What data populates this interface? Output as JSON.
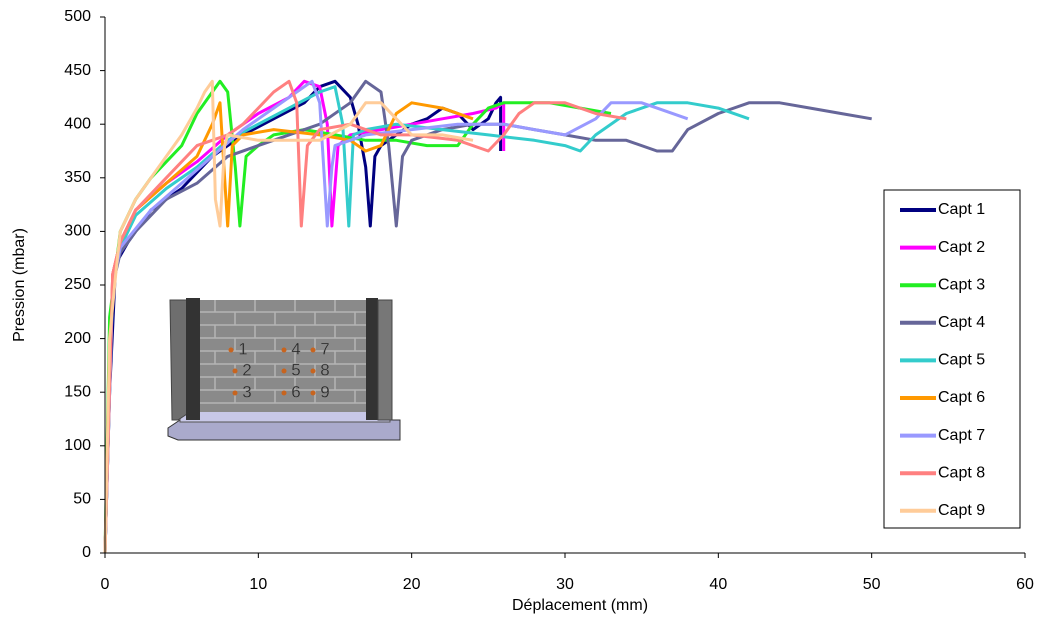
{
  "chart_data": {
    "type": "line",
    "x_label": "Déplacement (mm)",
    "y_label": "Pression (mbar)",
    "xlim": [
      0,
      60
    ],
    "xticks": [
      0,
      10,
      20,
      30,
      40,
      50,
      60
    ],
    "ylim": [
      0,
      500
    ],
    "yticks": [
      0,
      50,
      100,
      150,
      200,
      250,
      300,
      350,
      400,
      450,
      500
    ],
    "grid": false,
    "legend": "right",
    "inset_labels": [
      "1",
      "2",
      "3",
      "4",
      "5",
      "6",
      "7",
      "8",
      "9"
    ],
    "series": [
      {
        "name": "Capt 1",
        "color": "#000080",
        "x": [
          0,
          0.3,
          0.7,
          1.5,
          3,
          5,
          7,
          9,
          11,
          13,
          14,
          15,
          16,
          16.5,
          17,
          17.3,
          17.6,
          18,
          19,
          20,
          21,
          22,
          23,
          24,
          25,
          25.5,
          25.8,
          25.8
        ],
        "values": [
          0,
          150,
          270,
          290,
          320,
          340,
          370,
          390,
          405,
          420,
          435,
          440,
          425,
          400,
          360,
          305,
          370,
          380,
          390,
          400,
          405,
          415,
          410,
          395,
          405,
          420,
          425,
          375
        ]
      },
      {
        "name": "Capt 2",
        "color": "#ff00ff",
        "x": [
          0,
          0.5,
          1,
          2,
          4,
          6,
          8,
          10,
          12,
          13,
          14,
          14.5,
          14.8,
          15.2,
          16,
          18,
          20,
          22,
          24,
          25.5,
          26,
          26
        ],
        "values": [
          0,
          260,
          290,
          320,
          345,
          365,
          390,
          410,
          425,
          440,
          435,
          400,
          305,
          380,
          390,
          395,
          400,
          405,
          410,
          415,
          420,
          375
        ]
      },
      {
        "name": "Capt 3",
        "color": "#22ee22",
        "x": [
          0,
          0.3,
          1,
          2,
          3,
          5,
          6,
          7,
          7.5,
          8,
          8.5,
          8.8,
          9.2,
          10,
          11,
          13,
          15,
          17,
          19,
          21,
          23,
          24,
          25,
          26,
          27,
          29,
          31,
          33
        ],
        "values": [
          0,
          220,
          300,
          330,
          350,
          380,
          410,
          430,
          440,
          430,
          360,
          305,
          370,
          380,
          390,
          395,
          390,
          385,
          385,
          380,
          380,
          400,
          415,
          420,
          420,
          420,
          415,
          410
        ]
      },
      {
        "name": "Capt 4",
        "color": "#666699",
        "x": [
          0,
          0.5,
          1,
          2,
          4,
          6,
          8,
          10,
          12,
          14,
          16,
          17,
          18,
          18.5,
          19,
          19.4,
          20,
          22,
          24,
          26,
          28,
          30,
          32,
          34,
          36,
          37,
          38,
          40,
          42,
          44,
          46,
          48,
          50
        ],
        "values": [
          0,
          250,
          280,
          300,
          330,
          345,
          370,
          380,
          390,
          400,
          420,
          440,
          430,
          380,
          305,
          370,
          385,
          395,
          400,
          400,
          395,
          390,
          385,
          385,
          375,
          375,
          395,
          410,
          420,
          420,
          415,
          410,
          405
        ]
      },
      {
        "name": "Capt 5",
        "color": "#33cccc",
        "x": [
          0,
          0.5,
          1,
          2,
          4,
          6,
          8,
          10,
          12,
          14,
          15,
          15.5,
          15.9,
          16.2,
          17,
          19,
          22,
          25,
          28,
          30,
          31,
          32,
          34,
          36,
          38,
          40,
          42
        ],
        "values": [
          0,
          255,
          285,
          315,
          340,
          360,
          385,
          400,
          415,
          430,
          435,
          400,
          305,
          390,
          395,
          400,
          395,
          390,
          385,
          380,
          375,
          390,
          410,
          420,
          420,
          415,
          405
        ]
      },
      {
        "name": "Capt 6",
        "color": "#ff9900",
        "x": [
          0,
          0.5,
          1,
          2,
          4,
          6,
          7,
          7.5,
          7.8,
          8,
          8.3,
          9,
          11,
          14,
          16,
          17,
          18,
          19,
          20,
          22,
          24
        ],
        "values": [
          0,
          260,
          290,
          320,
          345,
          370,
          400,
          420,
          350,
          305,
          380,
          390,
          395,
          390,
          385,
          375,
          380,
          410,
          420,
          415,
          405
        ]
      },
      {
        "name": "Capt 7",
        "color": "#9999ff",
        "x": [
          0,
          0.5,
          1,
          3,
          5,
          7,
          9,
          11,
          12.5,
          13.5,
          14,
          14.5,
          14.8,
          15,
          17,
          20,
          23,
          26,
          28,
          30,
          32,
          33,
          35,
          36,
          38
        ],
        "values": [
          0,
          250,
          285,
          320,
          345,
          370,
          395,
          415,
          430,
          440,
          420,
          305,
          360,
          380,
          390,
          395,
          400,
          400,
          395,
          390,
          405,
          420,
          420,
          415,
          405
        ]
      },
      {
        "name": "Capt 8",
        "color": "#ff8080",
        "x": [
          0,
          0.5,
          1,
          2,
          4,
          6,
          8,
          9,
          10,
          11,
          12,
          12.5,
          12.8,
          13.2,
          14,
          16,
          18,
          20,
          23,
          25,
          26,
          27,
          28,
          30,
          32,
          34
        ],
        "values": [
          0,
          260,
          290,
          320,
          350,
          380,
          390,
          400,
          415,
          430,
          440,
          420,
          305,
          380,
          395,
          400,
          390,
          390,
          385,
          375,
          390,
          410,
          420,
          420,
          410,
          405
        ]
      },
      {
        "name": "Capt 9",
        "color": "#ffcc99",
        "x": [
          0,
          0.3,
          0.7,
          1,
          2,
          3,
          4,
          5,
          6,
          6.5,
          7,
          7.2,
          7.5,
          7.8,
          8,
          10,
          12,
          14,
          16,
          17,
          18,
          19,
          20,
          22,
          24
        ],
        "values": [
          0,
          200,
          260,
          300,
          330,
          350,
          370,
          390,
          415,
          430,
          440,
          330,
          305,
          380,
          390,
          385,
          385,
          385,
          400,
          420,
          420,
          405,
          390,
          390,
          385
        ]
      }
    ]
  }
}
